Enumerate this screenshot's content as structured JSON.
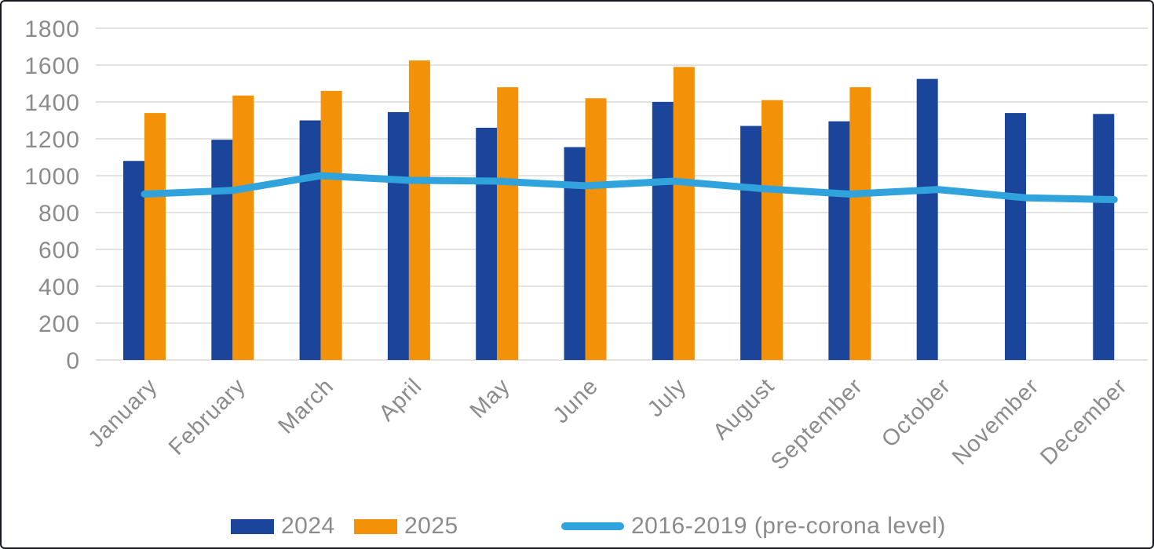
{
  "frame": {
    "background": "#ffffff",
    "border_color": "#17171f"
  },
  "chart_data": {
    "type": "bar",
    "title": "",
    "xlabel": "",
    "ylabel": "",
    "categories": [
      "January",
      "February",
      "March",
      "April",
      "May",
      "June",
      "July",
      "August",
      "September",
      "October",
      "November",
      "December"
    ],
    "series": [
      {
        "name": "2024",
        "type": "bar",
        "color": "#1b459b",
        "values": [
          1080,
          1195,
          1300,
          1345,
          1260,
          1155,
          1400,
          1270,
          1295,
          1525,
          1340,
          1335
        ]
      },
      {
        "name": "2025",
        "type": "bar",
        "color": "#f39108",
        "values": [
          1340,
          1435,
          1460,
          1625,
          1480,
          1420,
          1590,
          1410,
          1480,
          null,
          null,
          null
        ]
      },
      {
        "name": "2016-2019 (pre-corona level)",
        "type": "line",
        "color": "#31a3dc",
        "values": [
          900,
          920,
          1000,
          975,
          970,
          945,
          970,
          930,
          900,
          925,
          880,
          870
        ]
      }
    ],
    "ylim": [
      0,
      1800
    ],
    "yticks": [
      0,
      200,
      400,
      600,
      800,
      1000,
      1200,
      1400,
      1600,
      1800
    ],
    "grid": true,
    "gridline_color": "#e3e3e3",
    "axis_text_color": "#8b8b8b",
    "legend_position": "bottom"
  },
  "legend": {
    "items": [
      {
        "label": "2024",
        "marker": "rect",
        "color": "#1b459b"
      },
      {
        "label": "2025",
        "marker": "rect",
        "color": "#f39108"
      },
      {
        "label": "2016-2019 (pre-corona level)",
        "marker": "line",
        "color": "#31a3dc"
      }
    ]
  }
}
